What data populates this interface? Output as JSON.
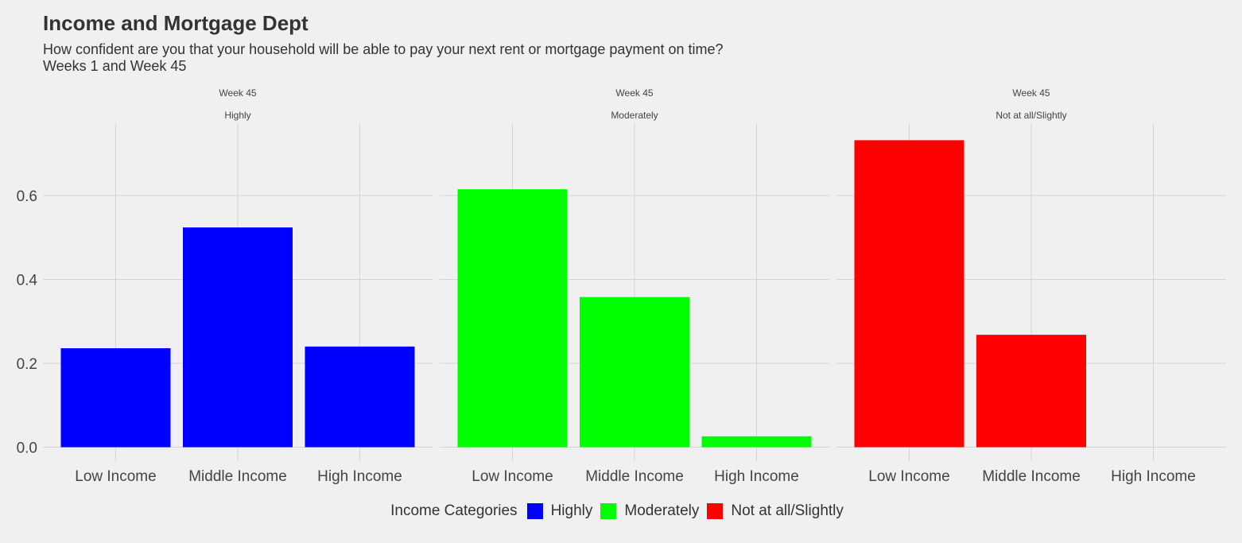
{
  "title": "Income and Mortgage Dept",
  "subtitle_line1": "How confident are you that your household will be able to pay your next rent or mortgage payment on time?",
  "subtitle_line2": "Weeks 1 and Week 45",
  "legend": {
    "title": "Income Categories",
    "items": [
      {
        "label": "Highly",
        "color": "#0000ff"
      },
      {
        "label": "Moderately",
        "color": "#00ff00"
      },
      {
        "label": "Not at all/Slightly",
        "color": "#ff0000"
      }
    ]
  },
  "chart_data": {
    "type": "bar",
    "facets": [
      {
        "strip_top": "Week 45",
        "strip_bottom": "Highly",
        "color": "#0000ff",
        "categories": [
          "Low Income",
          "Middle Income",
          "High Income"
        ],
        "values": [
          0.236,
          0.524,
          0.24
        ]
      },
      {
        "strip_top": "Week 45",
        "strip_bottom": "Moderately",
        "color": "#00ff00",
        "categories": [
          "Low Income",
          "Middle Income",
          "High Income"
        ],
        "values": [
          0.615,
          0.358,
          0.026
        ]
      },
      {
        "strip_top": "Week 45",
        "strip_bottom": "Not at all/Slightly",
        "color": "#ff0000",
        "categories": [
          "Low Income",
          "Middle Income",
          "High Income"
        ],
        "values": [
          0.732,
          0.268,
          0.0
        ]
      }
    ],
    "ylim": [
      0,
      0.77
    ],
    "yticks": [
      0.0,
      0.2,
      0.4,
      0.6
    ],
    "ytick_labels": [
      "0.0",
      "0.2",
      "0.4",
      "0.6"
    ],
    "grid": true,
    "legend_position": "bottom"
  }
}
